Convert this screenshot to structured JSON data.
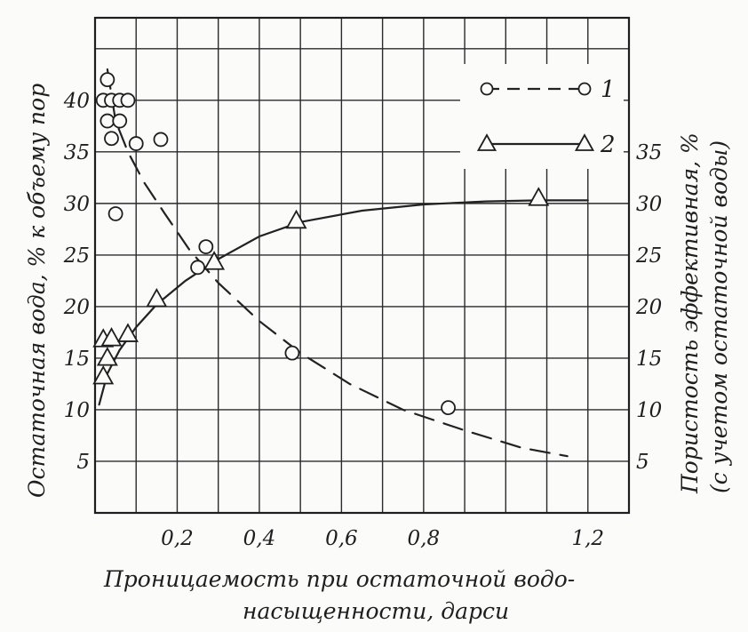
{
  "chart_data": {
    "type": "scatter",
    "title": "",
    "xlabel": "Проницаемость при остаточной водо- насыщенности, дарси",
    "xlabel_lines": [
      "Проницаемость при остаточной водо-",
      "насыщенности, дарси"
    ],
    "ylabel_left": "Остаточная вода, % к объему пор",
    "ylabel_right": "Пористость эффективная, %",
    "ylabel_right_sub": "(с учетом остаточной воды)",
    "xlim": [
      0,
      1.3
    ],
    "ylim_left": [
      0,
      48
    ],
    "ylim_right": [
      0,
      48
    ],
    "x_ticks": [
      "0,2",
      "0,4",
      "0,6",
      "0,8",
      "1,2"
    ],
    "x_tick_values": [
      0.2,
      0.4,
      0.6,
      0.8,
      1.2
    ],
    "y_ticks_left": [
      "5",
      "10",
      "15",
      "20",
      "25",
      "30",
      "35",
      "40"
    ],
    "y_tick_values_left": [
      5,
      10,
      15,
      20,
      25,
      30,
      35,
      40
    ],
    "y_ticks_right": [
      "5",
      "10",
      "15",
      "20",
      "25",
      "30",
      "35"
    ],
    "y_tick_values_right": [
      5,
      10,
      15,
      20,
      25,
      30,
      35
    ],
    "grid": true,
    "legend": "top-right",
    "series": [
      {
        "name": "1",
        "marker": "circle",
        "line": "dashed",
        "axis": "left",
        "points": [
          [
            0.03,
            42
          ],
          [
            0.02,
            40
          ],
          [
            0.04,
            40
          ],
          [
            0.06,
            40
          ],
          [
            0.08,
            40
          ],
          [
            0.03,
            38
          ],
          [
            0.06,
            38
          ],
          [
            0.04,
            36.3
          ],
          [
            0.1,
            35.8
          ],
          [
            0.16,
            36.2
          ],
          [
            0.05,
            29
          ],
          [
            0.27,
            25.8
          ],
          [
            0.25,
            23.8
          ],
          [
            0.48,
            15.5
          ],
          [
            0.86,
            10.2
          ]
        ],
        "trend": [
          [
            0.03,
            43
          ],
          [
            0.05,
            38
          ],
          [
            0.08,
            35
          ],
          [
            0.12,
            32
          ],
          [
            0.17,
            29
          ],
          [
            0.23,
            25.5
          ],
          [
            0.3,
            22.3
          ],
          [
            0.4,
            18.6
          ],
          [
            0.5,
            15.5
          ],
          [
            0.62,
            12.5
          ],
          [
            0.75,
            10
          ],
          [
            0.9,
            8
          ],
          [
            1.04,
            6.3
          ],
          [
            1.15,
            5.5
          ]
        ]
      },
      {
        "name": "2",
        "marker": "triangle",
        "line": "solid",
        "axis": "right",
        "points": [
          [
            0.02,
            16.8
          ],
          [
            0.04,
            16.9
          ],
          [
            0.08,
            17.3
          ],
          [
            0.03,
            15
          ],
          [
            0.02,
            13.2
          ],
          [
            0.15,
            20.7
          ],
          [
            0.29,
            24.3
          ],
          [
            0.49,
            28.3
          ],
          [
            1.08,
            30.5
          ]
        ],
        "trend": [
          [
            0.01,
            10.5
          ],
          [
            0.03,
            13.5
          ],
          [
            0.06,
            15.8
          ],
          [
            0.1,
            18
          ],
          [
            0.15,
            20.2
          ],
          [
            0.22,
            22.5
          ],
          [
            0.3,
            24.6
          ],
          [
            0.4,
            26.8
          ],
          [
            0.5,
            28.2
          ],
          [
            0.65,
            29.3
          ],
          [
            0.8,
            29.9
          ],
          [
            0.95,
            30.2
          ],
          [
            1.08,
            30.3
          ],
          [
            1.2,
            30.3
          ]
        ]
      }
    ]
  }
}
